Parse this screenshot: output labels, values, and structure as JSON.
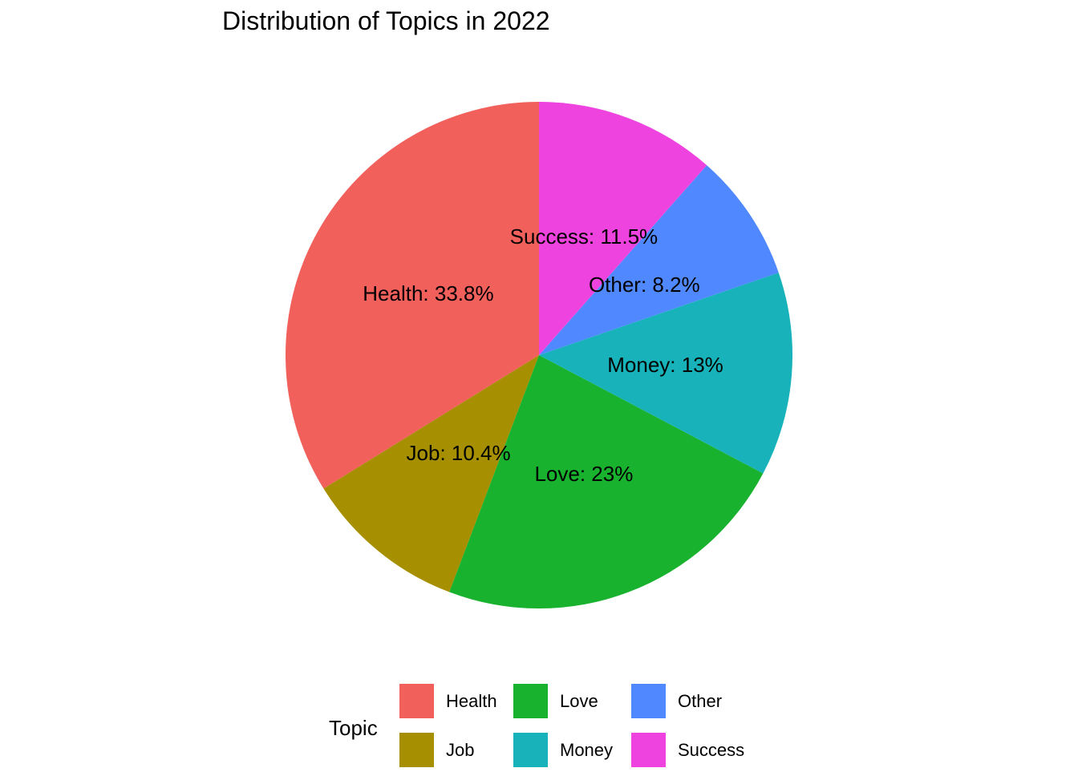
{
  "chart_data": {
    "type": "pie",
    "title": "Distribution of Topics in 2022",
    "legend_title": "Topic",
    "legend_position": "bottom",
    "start": "top",
    "direction": "counterclockwise",
    "slices": [
      {
        "name": "Health",
        "value": 33.8,
        "label": "Health: 33.8%",
        "color": "#F2605C"
      },
      {
        "name": "Job",
        "value": 10.4,
        "label": "Job: 10.4%",
        "color": "#A68F00"
      },
      {
        "name": "Love",
        "value": 23,
        "label": "Love: 23%",
        "color": "#18B22E"
      },
      {
        "name": "Money",
        "value": 13,
        "label": "Money: 13%",
        "color": "#17B2BA"
      },
      {
        "name": "Other",
        "value": 8.2,
        "label": "Other: 8.2%",
        "color": "#5089FF"
      },
      {
        "name": "Success",
        "value": 11.5,
        "label": "Success: 11.5%",
        "color": "#EE43DE"
      }
    ],
    "legend": [
      {
        "label": "Health",
        "color": "#F2605C"
      },
      {
        "label": "Job",
        "color": "#A68F00"
      },
      {
        "label": "Love",
        "color": "#18B22E"
      },
      {
        "label": "Money",
        "color": "#17B2BA"
      },
      {
        "label": "Other",
        "color": "#5089FF"
      },
      {
        "label": "Success",
        "color": "#EE43DE"
      }
    ]
  }
}
